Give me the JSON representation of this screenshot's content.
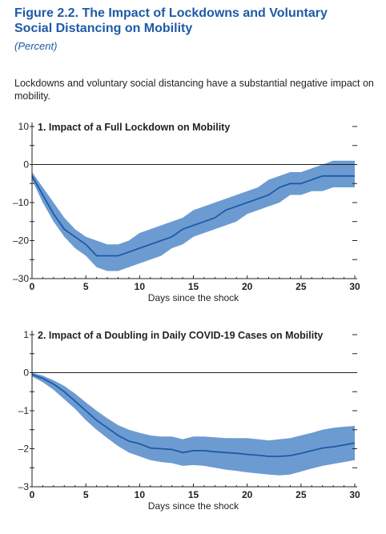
{
  "figure": {
    "title": "Figure 2.2.  The Impact of Lockdowns and Voluntary Social Distancing on Mobility",
    "subtitle": "(Percent)",
    "caption": "Lockdowns and voluntary social distancing have a substantial negative impact on mobility."
  },
  "colors": {
    "band": "#6b9bd1",
    "line": "#1f5aa6",
    "axis": "#231f20"
  },
  "chart_data": [
    {
      "type": "line",
      "title": "1. Impact of a Full Lockdown on Mobility",
      "xlabel": "Days since the shock",
      "ylabel": "",
      "xlim": [
        0,
        30
      ],
      "ylim": [
        -30,
        10
      ],
      "xticks": [
        0,
        5,
        10,
        15,
        20,
        25,
        30
      ],
      "yticks": [
        -30,
        -20,
        -10,
        0,
        10
      ],
      "x": [
        0,
        1,
        2,
        3,
        4,
        5,
        6,
        7,
        8,
        9,
        10,
        11,
        12,
        13,
        14,
        15,
        16,
        17,
        18,
        19,
        20,
        21,
        22,
        23,
        24,
        25,
        26,
        27,
        28,
        29,
        30
      ],
      "series": [
        {
          "values": [
            -3,
            -8,
            -13,
            -17,
            -19,
            -21,
            -24,
            -24,
            -24,
            -23,
            -22,
            -21,
            -20,
            -19,
            -17,
            -16,
            -15,
            -14,
            -12,
            -11,
            -10,
            -9,
            -8,
            -6,
            -5,
            -5,
            -4,
            -3,
            -3,
            -3,
            -3
          ],
          "lower": [
            -4,
            -10,
            -15,
            -19,
            -22,
            -24,
            -27,
            -28,
            -28,
            -27,
            -26,
            -25,
            -24,
            -22,
            -21,
            -19,
            -18,
            -17,
            -16,
            -15,
            -13,
            -12,
            -11,
            -10,
            -8,
            -8,
            -7,
            -7,
            -6,
            -6,
            -6
          ],
          "upper": [
            -2,
            -6,
            -10,
            -14,
            -17,
            -19,
            -20,
            -21,
            -21,
            -20,
            -18,
            -17,
            -16,
            -15,
            -14,
            -12,
            -11,
            -10,
            -9,
            -8,
            -7,
            -6,
            -4,
            -3,
            -2,
            -2,
            -1,
            0,
            1,
            1,
            1
          ]
        }
      ]
    },
    {
      "type": "line",
      "title": "2. Impact of a Doubling in Daily COVID-19 Cases on Mobility",
      "xlabel": "Days since the shock",
      "ylabel": "",
      "xlim": [
        0,
        30
      ],
      "ylim": [
        -3,
        1
      ],
      "xticks": [
        0,
        5,
        10,
        15,
        20,
        25,
        30
      ],
      "yticks": [
        -3,
        -2,
        -1,
        0,
        1
      ],
      "x": [
        0,
        1,
        2,
        3,
        4,
        5,
        6,
        7,
        8,
        9,
        10,
        11,
        12,
        13,
        14,
        15,
        16,
        17,
        18,
        19,
        20,
        21,
        22,
        23,
        24,
        25,
        26,
        27,
        28,
        29,
        30
      ],
      "series": [
        {
          "values": [
            -0.05,
            -0.15,
            -0.3,
            -0.5,
            -0.75,
            -1.0,
            -1.25,
            -1.45,
            -1.65,
            -1.8,
            -1.87,
            -1.98,
            -2.0,
            -2.02,
            -2.1,
            -2.05,
            -2.05,
            -2.08,
            -2.1,
            -2.12,
            -2.15,
            -2.17,
            -2.2,
            -2.2,
            -2.18,
            -2.12,
            -2.05,
            -1.98,
            -1.95,
            -1.9,
            -1.85
          ],
          "lower": [
            -0.1,
            -0.25,
            -0.45,
            -0.7,
            -0.95,
            -1.25,
            -1.5,
            -1.72,
            -1.93,
            -2.1,
            -2.2,
            -2.3,
            -2.35,
            -2.38,
            -2.45,
            -2.43,
            -2.45,
            -2.5,
            -2.55,
            -2.58,
            -2.62,
            -2.65,
            -2.68,
            -2.7,
            -2.68,
            -2.6,
            -2.52,
            -2.45,
            -2.4,
            -2.35,
            -2.3
          ],
          "upper": [
            0.0,
            -0.08,
            -0.2,
            -0.35,
            -0.55,
            -0.78,
            -1.0,
            -1.2,
            -1.38,
            -1.5,
            -1.58,
            -1.65,
            -1.68,
            -1.68,
            -1.75,
            -1.68,
            -1.68,
            -1.7,
            -1.72,
            -1.72,
            -1.72,
            -1.75,
            -1.78,
            -1.75,
            -1.72,
            -1.65,
            -1.58,
            -1.5,
            -1.45,
            -1.42,
            -1.4
          ]
        }
      ]
    }
  ]
}
